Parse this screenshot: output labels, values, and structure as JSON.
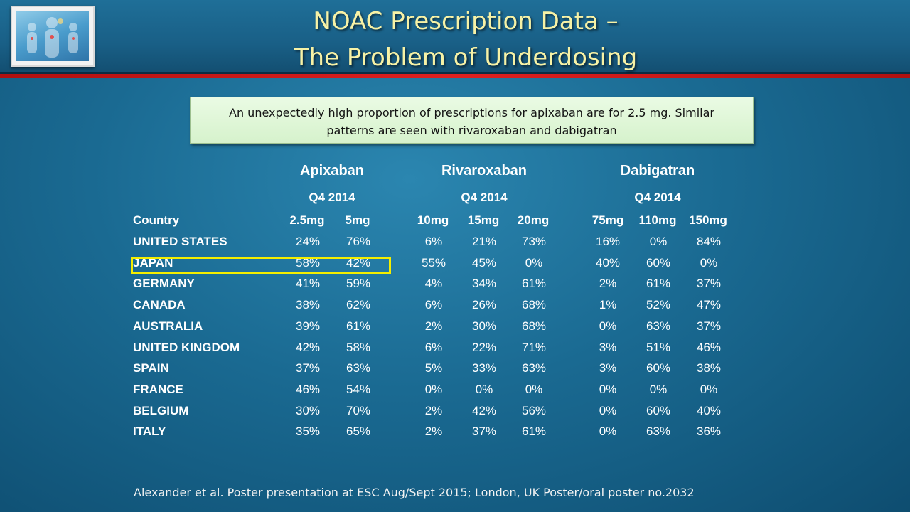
{
  "slide": {
    "title_line1": "NOAC Prescription Data –",
    "title_line2": "The Problem of Underdosing",
    "note": "An unexpectedly high proportion of prescriptions for apixaban are for 2.5 mg. Similar patterns are seen with rivaroxaban and dabigatran",
    "citation": "Alexander et al. Poster presentation at  ESC Aug/Sept 2015; London, UK Poster/oral poster no.2032",
    "highlight_color": "#f4ee00",
    "title_color": "#f7f2a6",
    "accent_red": "#e02020"
  },
  "table": {
    "country_header": "Country",
    "drugs": [
      {
        "name": "Apixaban",
        "period": "Q4 2014",
        "doses": [
          "2.5mg",
          "5mg"
        ]
      },
      {
        "name": "Rivaroxaban",
        "period": "Q4 2014",
        "doses": [
          "10mg",
          "15mg",
          "20mg"
        ]
      },
      {
        "name": "Dabigatran",
        "period": "Q4 2014",
        "doses": [
          "75mg",
          "110mg",
          "150mg"
        ]
      }
    ],
    "highlighted_row": "JAPAN",
    "rows": [
      {
        "country": "UNITED STATES",
        "values": [
          "24%",
          "76%",
          "6%",
          "21%",
          "73%",
          "16%",
          "0%",
          "84%"
        ]
      },
      {
        "country": "JAPAN",
        "values": [
          "58%",
          "42%",
          "55%",
          "45%",
          "0%",
          "40%",
          "60%",
          "0%"
        ]
      },
      {
        "country": "GERMANY",
        "values": [
          "41%",
          "59%",
          "4%",
          "34%",
          "61%",
          "2%",
          "61%",
          "37%"
        ]
      },
      {
        "country": "CANADA",
        "values": [
          "38%",
          "62%",
          "6%",
          "26%",
          "68%",
          "1%",
          "52%",
          "47%"
        ]
      },
      {
        "country": "AUSTRALIA",
        "values": [
          "39%",
          "61%",
          "2%",
          "30%",
          "68%",
          "0%",
          "63%",
          "37%"
        ]
      },
      {
        "country": "UNITED KINGDOM",
        "values": [
          "42%",
          "58%",
          "6%",
          "22%",
          "71%",
          "3%",
          "51%",
          "46%"
        ]
      },
      {
        "country": "SPAIN",
        "values": [
          "37%",
          "63%",
          "5%",
          "33%",
          "63%",
          "3%",
          "60%",
          "38%"
        ]
      },
      {
        "country": "FRANCE",
        "values": [
          "46%",
          "54%",
          "0%",
          "0%",
          "0%",
          "0%",
          "0%",
          "0%"
        ]
      },
      {
        "country": "BELGIUM",
        "values": [
          "30%",
          "70%",
          "2%",
          "42%",
          "56%",
          "0%",
          "60%",
          "40%"
        ]
      },
      {
        "country": "ITALY",
        "values": [
          "35%",
          "65%",
          "2%",
          "37%",
          "61%",
          "0%",
          "63%",
          "36%"
        ]
      }
    ]
  }
}
